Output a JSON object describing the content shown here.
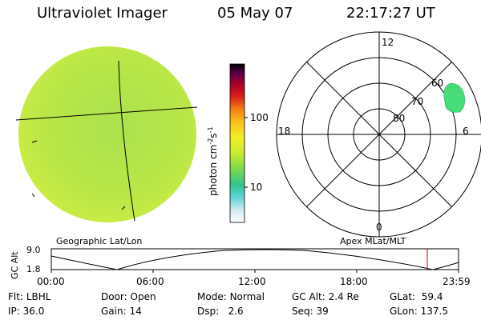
{
  "header": {
    "title": "Ultraviolet Imager",
    "date": "05 May 07",
    "time": "22:17:27 UT"
  },
  "colorbar": {
    "label_main": "photon cm",
    "label_exp1": "-2",
    "label_mid": "s",
    "label_exp2": "-1",
    "ticks": [
      "100",
      "10"
    ]
  },
  "polar": {
    "mlt_labels": [
      "12",
      "18",
      "6",
      "0"
    ],
    "lat_labels": [
      "60",
      "70",
      "80"
    ]
  },
  "captions": {
    "left": "Geographic Lat/Lon",
    "right": "Apex MLat/MLT"
  },
  "timeline": {
    "ylabel": "GC Alt",
    "yticks": [
      "9.0",
      "1.8"
    ],
    "xticks": [
      "00:00",
      "06:00",
      "12:00",
      "18:00",
      "23:59"
    ]
  },
  "info": {
    "row1": [
      {
        "key": "Flt:",
        "val": "LBHL"
      },
      {
        "key": "Door:",
        "val": "Open"
      },
      {
        "key": "Mode:",
        "val": "Normal"
      },
      {
        "key": "GC Alt:",
        "val": "2.4 Re"
      },
      {
        "key": "GLat:",
        "val": "59.4"
      }
    ],
    "row2": [
      {
        "key": "IP:",
        "val": "36.0"
      },
      {
        "key": "Gain:",
        "val": "14"
      },
      {
        "key": "Dsp:",
        "val": "2.6"
      },
      {
        "key": "Seq:",
        "val": "39"
      },
      {
        "key": "GLon:",
        "val": "137.5"
      }
    ]
  },
  "colors": {
    "disk_fill": "#b9e63c",
    "auroral_patch": "#46dc7a",
    "marker": "#cc0000"
  }
}
